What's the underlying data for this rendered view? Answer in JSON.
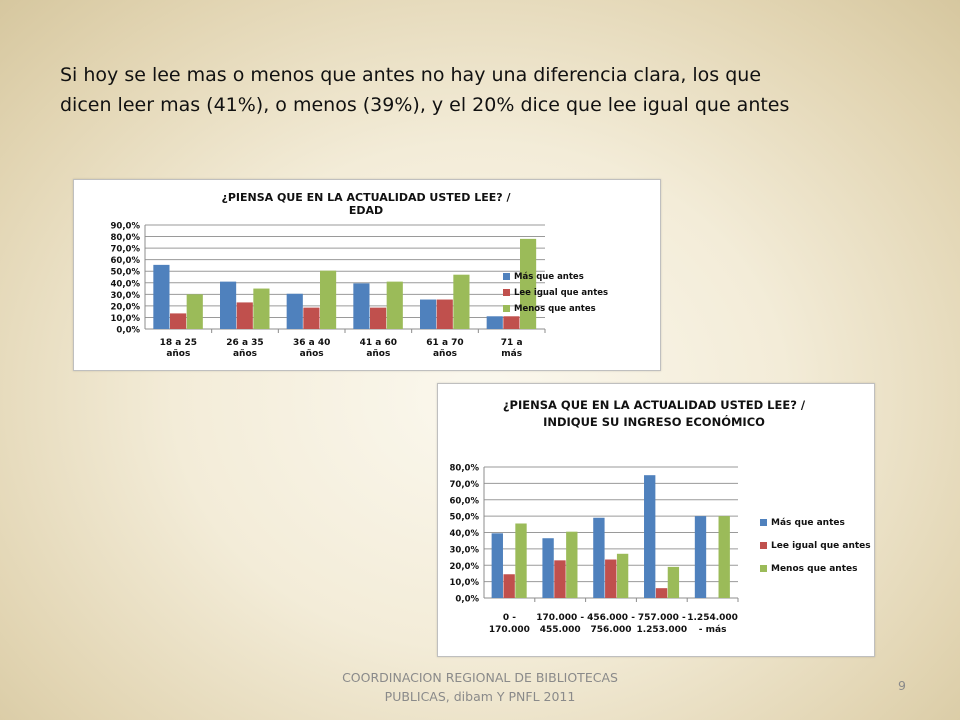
{
  "slide": {
    "heading_lines": [
      "Si hoy se lee mas o menos que antes no hay una diferencia clara, los que",
      "dicen leer mas (41%), o menos (39%), y el 20% dice que lee igual que antes"
    ],
    "footer_lines": [
      "COORDINACION REGIONAL DE BIBLIOTECAS",
      "PUBLICAS, dibam Y PNFL 2011"
    ],
    "page_number": "9"
  },
  "colors": {
    "series": [
      "#4f81bd",
      "#c0504d",
      "#9bbb59"
    ]
  },
  "chart_data": [
    {
      "type": "bar",
      "title_lines": [
        "¿PIENSA QUE EN LA ACTUALIDAD USTED LEE? /",
        "EDAD"
      ],
      "categories": [
        [
          "18 a 25",
          "años"
        ],
        [
          "26 a 35",
          "años"
        ],
        [
          "36 a 40",
          "años"
        ],
        [
          "41 a 60",
          "años"
        ],
        [
          "61 a 70",
          "años"
        ],
        [
          "71 a",
          "más"
        ]
      ],
      "series": [
        {
          "name": "Más que antes",
          "values": [
            55.5,
            41,
            30.5,
            39.5,
            25.5,
            11
          ]
        },
        {
          "name": "Lee igual que antes",
          "values": [
            13.5,
            23,
            18.5,
            18.5,
            25.5,
            11
          ]
        },
        {
          "name": "Menos que antes",
          "values": [
            30,
            35,
            50.5,
            41,
            47,
            78
          ]
        }
      ],
      "ylim": [
        0,
        90
      ],
      "ytick_step": 10,
      "ytick_labels": [
        "0,0%",
        "10,0%",
        "20,0%",
        "30,0%",
        "40,0%",
        "50,0%",
        "60,0%",
        "70,0%",
        "80,0%",
        "90,0%"
      ],
      "grid": true,
      "legend": "right"
    },
    {
      "type": "bar",
      "title_lines": [
        "¿PIENSA QUE EN LA ACTUALIDAD USTED LEE? /",
        "INDIQUE SU INGRESO ECONÓMICO"
      ],
      "categories": [
        [
          "0 -",
          "170.000"
        ],
        [
          "170.000 -",
          "455.000"
        ],
        [
          "456.000 -",
          "756.000"
        ],
        [
          "757.000 -",
          "1.253.000"
        ],
        [
          "1.254.000",
          "- más"
        ]
      ],
      "series": [
        {
          "name": "Más que antes",
          "values": [
            39.5,
            36.5,
            49,
            75,
            50
          ]
        },
        {
          "name": "Lee igual que antes",
          "values": [
            14.5,
            23,
            23.5,
            6,
            0
          ]
        },
        {
          "name": "Menos que antes",
          "values": [
            45.5,
            40.5,
            27,
            19,
            50
          ]
        }
      ],
      "ylim": [
        0,
        80
      ],
      "ytick_step": 10,
      "ytick_labels": [
        "0,0%",
        "10,0%",
        "20,0%",
        "30,0%",
        "40,0%",
        "50,0%",
        "60,0%",
        "70,0%",
        "80,0%"
      ],
      "grid": true,
      "legend": "right"
    }
  ]
}
